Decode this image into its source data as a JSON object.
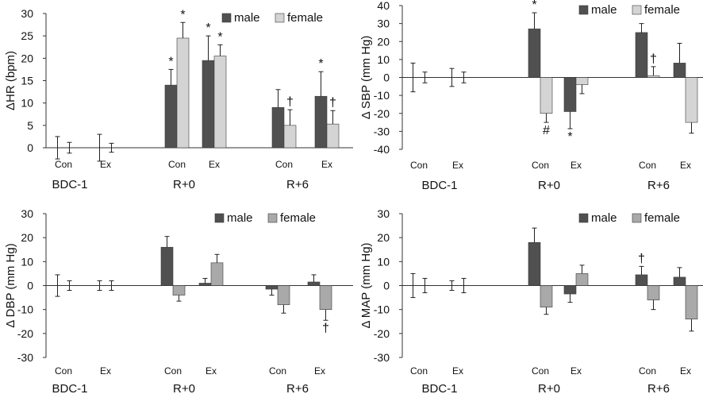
{
  "colors": {
    "male": "#505050",
    "female_light": "#d4d4d4",
    "female_mid": "#a9a9a9",
    "axis": "#333333",
    "error": "#222222"
  },
  "chart_data": [
    {
      "id": "hr",
      "type": "bar",
      "ylabel": "ΔHR (bpm)",
      "ylim": [
        0,
        30
      ],
      "yticks": [
        0,
        5,
        10,
        15,
        20,
        25,
        30
      ],
      "conditions": [
        "Con",
        "Ex",
        "Con",
        "Ex",
        "Con",
        "Ex"
      ],
      "groups": [
        "BDC-1",
        "R+0",
        "R+6"
      ],
      "legend": [
        "male",
        "female"
      ],
      "female_color": "female_light",
      "series": [
        {
          "name": "male",
          "values": [
            0,
            0,
            14,
            19.5,
            9,
            11.5
          ],
          "errors": [
            2.5,
            3,
            3.5,
            5.5,
            4,
            5.5
          ],
          "marks": [
            "",
            "",
            "*",
            "*",
            "",
            "*"
          ]
        },
        {
          "name": "female",
          "values": [
            0,
            0,
            24.5,
            20.5,
            5,
            5.3
          ],
          "errors": [
            1.2,
            1,
            3.5,
            2.5,
            3.5,
            3
          ],
          "marks": [
            "",
            "",
            "*",
            "*",
            "†",
            "†"
          ]
        }
      ]
    },
    {
      "id": "sbp",
      "type": "bar",
      "ylabel": "Δ SBP (mm Hg)",
      "ylim": [
        -40,
        40
      ],
      "yticks": [
        -40,
        -30,
        -20,
        -10,
        0,
        10,
        20,
        30,
        40
      ],
      "conditions": [
        "Con",
        "Ex",
        "Con",
        "Ex",
        "Con",
        "Ex"
      ],
      "groups": [
        "BDC-1",
        "R+0",
        "R+6"
      ],
      "legend": [
        "male",
        "female"
      ],
      "female_color": "female_light",
      "series": [
        {
          "name": "male",
          "values": [
            0,
            0,
            27,
            -19,
            25,
            8
          ],
          "errors": [
            8,
            5,
            9,
            9.5,
            5,
            11
          ],
          "marks": [
            "",
            "",
            "*",
            "*",
            "",
            ""
          ]
        },
        {
          "name": "female",
          "values": [
            0,
            0,
            -20,
            -4,
            1,
            -25
          ],
          "errors": [
            3,
            3,
            5,
            5,
            5,
            6
          ],
          "marks": [
            "",
            "",
            "#",
            "",
            "†",
            ""
          ]
        }
      ]
    },
    {
      "id": "dbp",
      "type": "bar",
      "ylabel": "Δ DBP (mm Hg)",
      "ylim": [
        -30,
        30
      ],
      "yticks": [
        -30,
        -20,
        -10,
        0,
        10,
        20,
        30
      ],
      "conditions": [
        "Con",
        "Ex",
        "Con",
        "Ex",
        "Con",
        "Ex"
      ],
      "groups": [
        "BDC-1",
        "R+0",
        "R+6"
      ],
      "legend": [
        "male",
        "female"
      ],
      "female_color": "female_mid",
      "series": [
        {
          "name": "male",
          "values": [
            0,
            0,
            16,
            1,
            -1.5,
            1.5
          ],
          "errors": [
            4.5,
            2,
            4.5,
            2,
            2.5,
            3
          ],
          "marks": [
            "",
            "",
            "",
            "",
            "",
            ""
          ]
        },
        {
          "name": "female",
          "values": [
            0,
            0,
            -4,
            9.5,
            -8,
            -10
          ],
          "errors": [
            2,
            2,
            2.5,
            3.5,
            3.5,
            4.5
          ],
          "marks": [
            "",
            "",
            "",
            "",
            "",
            "†"
          ]
        }
      ]
    },
    {
      "id": "map",
      "type": "bar",
      "ylabel": "Δ MAP (mm Hg)",
      "ylim": [
        -30,
        30
      ],
      "yticks": [
        -30,
        -20,
        -10,
        0,
        10,
        20,
        30
      ],
      "conditions": [
        "Con",
        "Ex",
        "Con",
        "Ex",
        "Con",
        "Ex"
      ],
      "groups": [
        "BDC-1",
        "R+0",
        "R+6"
      ],
      "legend": [
        "male",
        "female"
      ],
      "female_color": "female_mid",
      "series": [
        {
          "name": "male",
          "values": [
            0,
            0,
            18,
            -3.5,
            4.5,
            3.5
          ],
          "errors": [
            5,
            2,
            6,
            3.5,
            3.5,
            4
          ],
          "marks": [
            "",
            "",
            "",
            "",
            "†",
            ""
          ]
        },
        {
          "name": "female",
          "values": [
            0,
            0,
            -9,
            5,
            -6,
            -14
          ],
          "errors": [
            3,
            3,
            3,
            3.5,
            4,
            5
          ],
          "marks": [
            "",
            "",
            "",
            "",
            "",
            ""
          ]
        }
      ]
    }
  ]
}
